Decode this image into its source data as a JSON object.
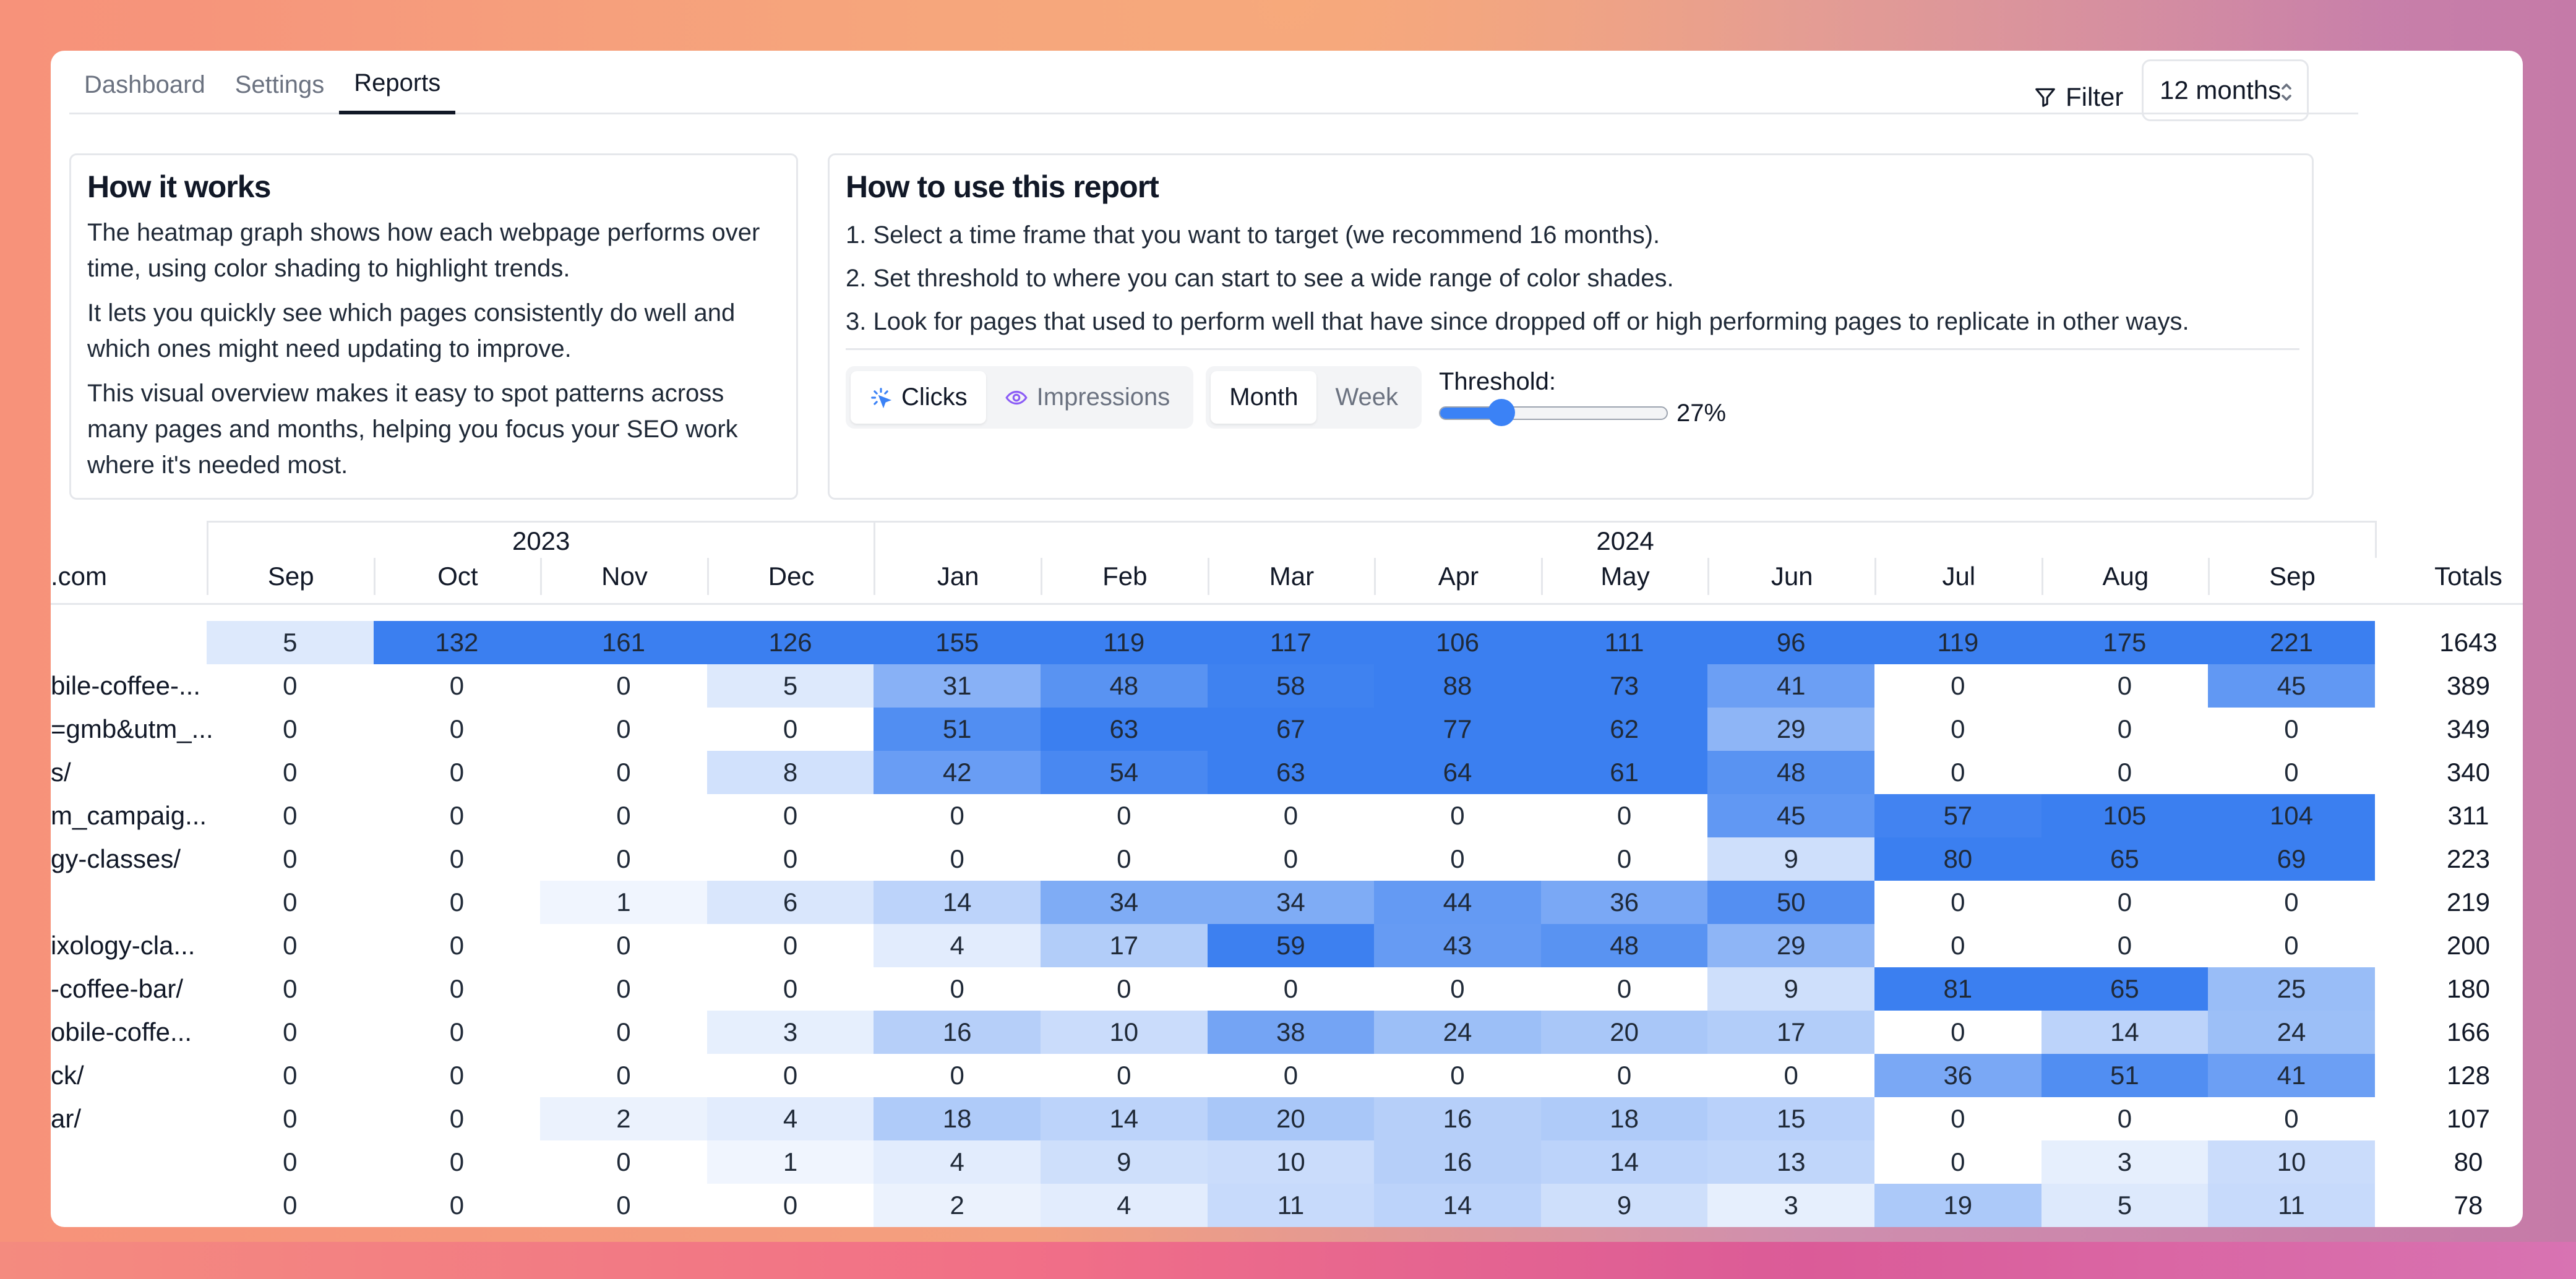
{
  "tabs": [
    {
      "label": "Dashboard",
      "active": false
    },
    {
      "label": "Settings",
      "active": false
    },
    {
      "label": "Reports",
      "active": true
    }
  ],
  "filter": {
    "label": "Filter",
    "icon": "filter-icon"
  },
  "range": {
    "value": "12 months"
  },
  "how_it_works": {
    "title": "How it works",
    "paragraphs": [
      "The heatmap graph shows how each webpage performs over time, using color shading to highlight trends.",
      "It lets you quickly see which pages consistently do well and which ones might need updating to improve.",
      "This visual overview makes it easy to spot patterns across many pages and months, helping you focus your SEO work where it's needed most."
    ]
  },
  "how_to_use": {
    "title": "How to use this report",
    "steps": [
      "1. Select a time frame that you want to target (we recommend 16 months).",
      "2. Set threshold to where you can start to see a wide range of color shades.",
      "3. Look for pages that used to perform well that have since dropped off or high performing pages to replicate in other ways."
    ]
  },
  "metric_toggle": {
    "options": [
      {
        "label": "Clicks",
        "icon": "cursor-click-icon",
        "selected": true
      },
      {
        "label": "Impressions",
        "icon": "eye-icon",
        "selected": false
      }
    ]
  },
  "period_toggle": {
    "options": [
      {
        "label": "Month",
        "selected": true
      },
      {
        "label": "Week",
        "selected": false
      }
    ]
  },
  "threshold": {
    "label": "Threshold:",
    "value": 0.27,
    "display": "27%"
  },
  "colors": {
    "accent": "#3b82f6",
    "heat_max": "#3b7ff0",
    "heat_min": "#ffffff",
    "border": "#e5e7eb"
  },
  "heatmap": {
    "domain_header": ".com",
    "years": [
      {
        "label": "2023",
        "span": 4
      },
      {
        "label": "2024",
        "span": 9
      }
    ],
    "months": [
      "Sep",
      "Oct",
      "Nov",
      "Dec",
      "Jan",
      "Feb",
      "Mar",
      "Apr",
      "May",
      "Jun",
      "Jul",
      "Aug",
      "Sep"
    ],
    "totals_header": "Totals",
    "rows": [
      {
        "page": "",
        "values": [
          5,
          132,
          161,
          126,
          155,
          119,
          117,
          106,
          111,
          96,
          119,
          175,
          221
        ],
        "total": "1643"
      },
      {
        "page": "bile-coffee-...",
        "values": [
          0,
          0,
          0,
          5,
          31,
          48,
          58,
          88,
          73,
          41,
          0,
          0,
          45
        ],
        "total": "389"
      },
      {
        "page": "=gmb&utm_...",
        "values": [
          0,
          0,
          0,
          0,
          51,
          63,
          67,
          77,
          62,
          29,
          0,
          0,
          0
        ],
        "total": "349"
      },
      {
        "page": "s/",
        "values": [
          0,
          0,
          0,
          8,
          42,
          54,
          63,
          64,
          61,
          48,
          0,
          0,
          0
        ],
        "total": "340"
      },
      {
        "page": "m_campaig...",
        "values": [
          0,
          0,
          0,
          0,
          0,
          0,
          0,
          0,
          0,
          45,
          57,
          105,
          104
        ],
        "total": "311"
      },
      {
        "page": "gy-classes/",
        "values": [
          0,
          0,
          0,
          0,
          0,
          0,
          0,
          0,
          0,
          9,
          80,
          65,
          69
        ],
        "total": "223"
      },
      {
        "page": "",
        "values": [
          0,
          0,
          1,
          6,
          14,
          34,
          34,
          44,
          36,
          50,
          0,
          0,
          0
        ],
        "total": "219"
      },
      {
        "page": "ixology-cla...",
        "values": [
          0,
          0,
          0,
          0,
          4,
          17,
          59,
          43,
          48,
          29,
          0,
          0,
          0
        ],
        "total": "200"
      },
      {
        "page": "-coffee-bar/",
        "values": [
          0,
          0,
          0,
          0,
          0,
          0,
          0,
          0,
          0,
          9,
          81,
          65,
          25
        ],
        "total": "180"
      },
      {
        "page": "obile-coffe...",
        "values": [
          0,
          0,
          0,
          3,
          16,
          10,
          38,
          24,
          20,
          17,
          0,
          14,
          24
        ],
        "total": "166"
      },
      {
        "page": "ck/",
        "values": [
          0,
          0,
          0,
          0,
          0,
          0,
          0,
          0,
          0,
          0,
          36,
          51,
          41
        ],
        "total": "128"
      },
      {
        "page": "ar/",
        "values": [
          0,
          0,
          2,
          4,
          18,
          14,
          20,
          16,
          18,
          15,
          0,
          0,
          0
        ],
        "total": "107"
      },
      {
        "page": "",
        "values": [
          0,
          0,
          0,
          1,
          4,
          9,
          10,
          16,
          14,
          13,
          0,
          3,
          10
        ],
        "total": "80"
      },
      {
        "page": "",
        "values": [
          0,
          0,
          0,
          0,
          2,
          4,
          11,
          14,
          9,
          3,
          19,
          5,
          11
        ],
        "total": "78"
      }
    ]
  }
}
